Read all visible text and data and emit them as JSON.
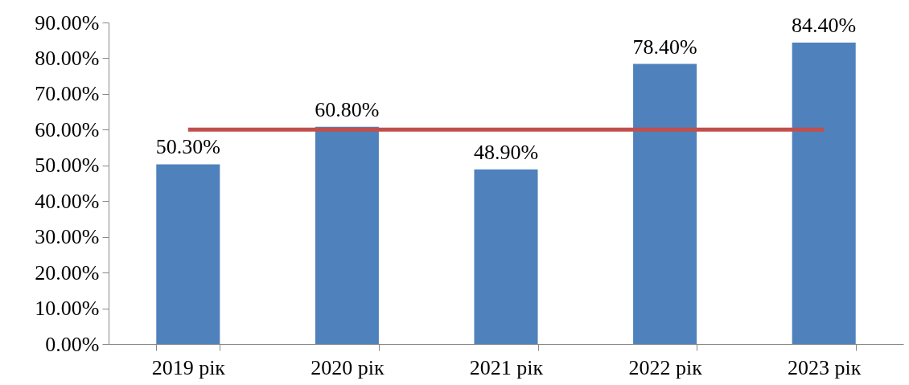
{
  "chart_data": {
    "type": "bar",
    "categories": [
      "2019 рік",
      "2020 рік",
      "2021 рік",
      "2022 рік",
      "2023 рік"
    ],
    "series": [
      {
        "color": "#4f81bd",
        "values": [
          50.3,
          60.8,
          48.9,
          78.4,
          84.4
        ],
        "value_labels": [
          "50.30%",
          "60.80%",
          "48.90%",
          "78.40%",
          "84.40%"
        ]
      },
      {
        "type": "line",
        "color": "#c0504d",
        "values": [
          60,
          60,
          60,
          60,
          60
        ]
      }
    ],
    "ylim": [
      0,
      90
    ],
    "yticks": [
      {
        "value": 0,
        "label": "0.00%"
      },
      {
        "value": 10,
        "label": "10.00%"
      },
      {
        "value": 20,
        "label": "20.00%"
      },
      {
        "value": 30,
        "label": "30.00%"
      },
      {
        "value": 40,
        "label": "40.00%"
      },
      {
        "value": 50,
        "label": "50.00%"
      },
      {
        "value": 60,
        "label": "60.00%"
      },
      {
        "value": 70,
        "label": "70.00%"
      },
      {
        "value": 80,
        "label": "80.00%"
      },
      {
        "value": 90,
        "label": "90.00%"
      }
    ],
    "tick_labels": "xy"
  }
}
